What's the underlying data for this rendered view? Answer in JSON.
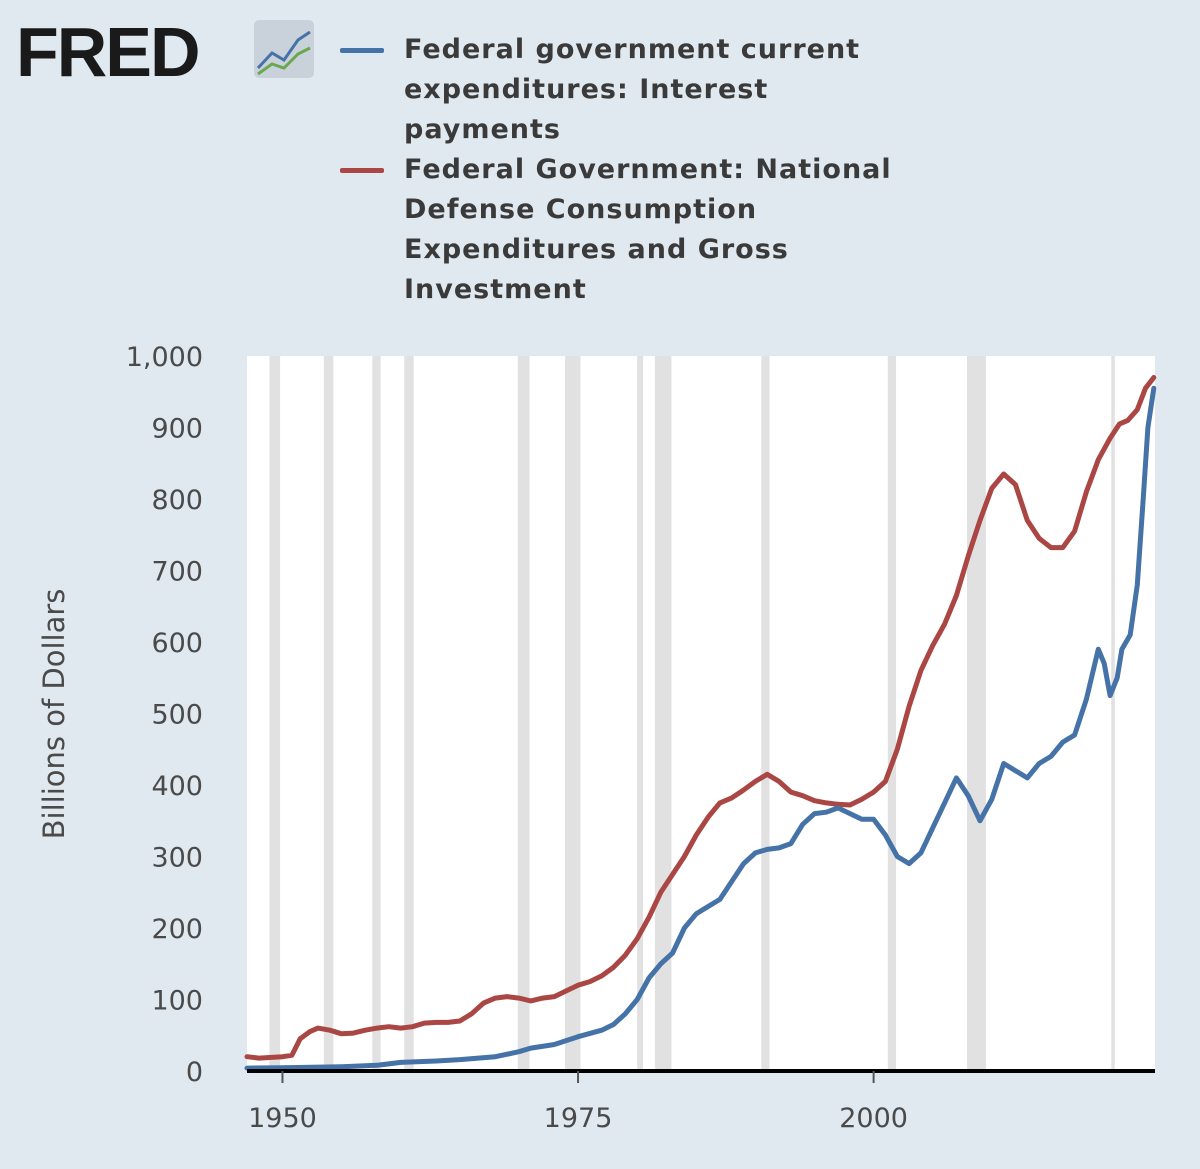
{
  "header": {
    "logo_text": "FRED"
  },
  "colors": {
    "series_1": "#4572a7",
    "series_2": "#aa4643",
    "recession": "#e1e1e1",
    "background": "#e1e9f0",
    "plot": "#ffffff"
  },
  "chart_data": {
    "type": "line",
    "ylabel": "Billions of Dollars",
    "xlabel": "",
    "xlim": [
      1947,
      2023.8
    ],
    "ylim": [
      0,
      1000
    ],
    "grid": "vertical recession bands",
    "legend_placement": "top",
    "x_ticks": [
      "1950",
      "1975",
      "2000"
    ],
    "y_ticks": [
      "0",
      "100",
      "200",
      "300",
      "400",
      "500",
      "600",
      "700",
      "800",
      "900",
      "1,000"
    ],
    "recession_bands": [
      [
        1948.9,
        1949.8
      ],
      [
        1953.5,
        1954.3
      ],
      [
        1957.6,
        1958.3
      ],
      [
        1960.3,
        1961.1
      ],
      [
        1969.9,
        1970.9
      ],
      [
        1973.9,
        1975.2
      ],
      [
        1980.0,
        1980.5
      ],
      [
        1981.5,
        1982.9
      ],
      [
        1990.5,
        1991.2
      ],
      [
        2001.2,
        2001.9
      ],
      [
        2007.9,
        2009.5
      ],
      [
        2020.1,
        2020.4
      ]
    ],
    "series": [
      {
        "name": "Federal government current expenditures: Interest payments",
        "color": "#4572a7",
        "points": [
          [
            1947,
            4
          ],
          [
            1950,
            4.5
          ],
          [
            1955,
            6
          ],
          [
            1958,
            8
          ],
          [
            1960,
            12
          ],
          [
            1963,
            14
          ],
          [
            1965,
            16
          ],
          [
            1968,
            20
          ],
          [
            1970,
            27
          ],
          [
            1971,
            32
          ],
          [
            1973,
            37
          ],
          [
            1975,
            48
          ],
          [
            1977,
            57
          ],
          [
            1978,
            65
          ],
          [
            1979,
            80
          ],
          [
            1980,
            100
          ],
          [
            1981,
            130
          ],
          [
            1982,
            150
          ],
          [
            1983,
            165
          ],
          [
            1984,
            200
          ],
          [
            1985,
            220
          ],
          [
            1986,
            230
          ],
          [
            1987,
            240
          ],
          [
            1988,
            265
          ],
          [
            1989,
            290
          ],
          [
            1990,
            305
          ],
          [
            1991,
            310
          ],
          [
            1992,
            312
          ],
          [
            1993,
            318
          ],
          [
            1994,
            345
          ],
          [
            1995,
            360
          ],
          [
            1996,
            362
          ],
          [
            1997,
            368
          ],
          [
            1998,
            360
          ],
          [
            1999,
            352
          ],
          [
            2000,
            352
          ],
          [
            2001,
            330
          ],
          [
            2002,
            300
          ],
          [
            2003,
            290
          ],
          [
            2004,
            305
          ],
          [
            2005,
            340
          ],
          [
            2006,
            375
          ],
          [
            2007,
            410
          ],
          [
            2008,
            385
          ],
          [
            2009,
            350
          ],
          [
            2010,
            380
          ],
          [
            2011,
            430
          ],
          [
            2012,
            420
          ],
          [
            2013,
            410
          ],
          [
            2014,
            430
          ],
          [
            2015,
            440
          ],
          [
            2016,
            460
          ],
          [
            2017,
            470
          ],
          [
            2018,
            520
          ],
          [
            2019,
            590
          ],
          [
            2019.5,
            570
          ],
          [
            2020,
            525
          ],
          [
            2020.6,
            550
          ],
          [
            2021,
            590
          ],
          [
            2021.7,
            610
          ],
          [
            2022.3,
            680
          ],
          [
            2022.8,
            800
          ],
          [
            2023.2,
            900
          ],
          [
            2023.7,
            955
          ]
        ]
      },
      {
        "name": "Federal Government: National Defense Consumption Expenditures and Gross Investment",
        "color": "#aa4643",
        "points": [
          [
            1947,
            20
          ],
          [
            1948,
            18
          ],
          [
            1950,
            20
          ],
          [
            1950.8,
            22
          ],
          [
            1951.5,
            45
          ],
          [
            1952.3,
            55
          ],
          [
            1953,
            60
          ],
          [
            1954,
            57
          ],
          [
            1955,
            52
          ],
          [
            1956,
            53
          ],
          [
            1957,
            57
          ],
          [
            1958,
            60
          ],
          [
            1959,
            62
          ],
          [
            1960,
            60
          ],
          [
            1961,
            62
          ],
          [
            1962,
            67
          ],
          [
            1963,
            68
          ],
          [
            1964,
            68
          ],
          [
            1965,
            70
          ],
          [
            1966,
            80
          ],
          [
            1967,
            95
          ],
          [
            1968,
            102
          ],
          [
            1969,
            104
          ],
          [
            1970,
            102
          ],
          [
            1971,
            98
          ],
          [
            1972,
            102
          ],
          [
            1973,
            104
          ],
          [
            1974,
            112
          ],
          [
            1975,
            120
          ],
          [
            1976,
            125
          ],
          [
            1977,
            133
          ],
          [
            1978,
            145
          ],
          [
            1979,
            162
          ],
          [
            1980,
            185
          ],
          [
            1981,
            215
          ],
          [
            1982,
            250
          ],
          [
            1983,
            275
          ],
          [
            1984,
            300
          ],
          [
            1985,
            330
          ],
          [
            1986,
            355
          ],
          [
            1987,
            375
          ],
          [
            1988,
            382
          ],
          [
            1989,
            393
          ],
          [
            1990,
            405
          ],
          [
            1991,
            415
          ],
          [
            1992,
            405
          ],
          [
            1993,
            390
          ],
          [
            1994,
            385
          ],
          [
            1995,
            378
          ],
          [
            1996,
            375
          ],
          [
            1997,
            373
          ],
          [
            1998,
            372
          ],
          [
            1999,
            380
          ],
          [
            2000,
            390
          ],
          [
            2001,
            405
          ],
          [
            2002,
            450
          ],
          [
            2003,
            510
          ],
          [
            2004,
            560
          ],
          [
            2005,
            595
          ],
          [
            2006,
            625
          ],
          [
            2007,
            665
          ],
          [
            2008,
            720
          ],
          [
            2009,
            770
          ],
          [
            2010,
            815
          ],
          [
            2011,
            835
          ],
          [
            2012,
            820
          ],
          [
            2013,
            770
          ],
          [
            2014,
            745
          ],
          [
            2015,
            732
          ],
          [
            2016,
            732
          ],
          [
            2017,
            755
          ],
          [
            2018,
            810
          ],
          [
            2019,
            855
          ],
          [
            2020,
            885
          ],
          [
            2020.8,
            905
          ],
          [
            2021.5,
            910
          ],
          [
            2022.3,
            925
          ],
          [
            2023,
            955
          ],
          [
            2023.7,
            970
          ]
        ]
      }
    ]
  }
}
